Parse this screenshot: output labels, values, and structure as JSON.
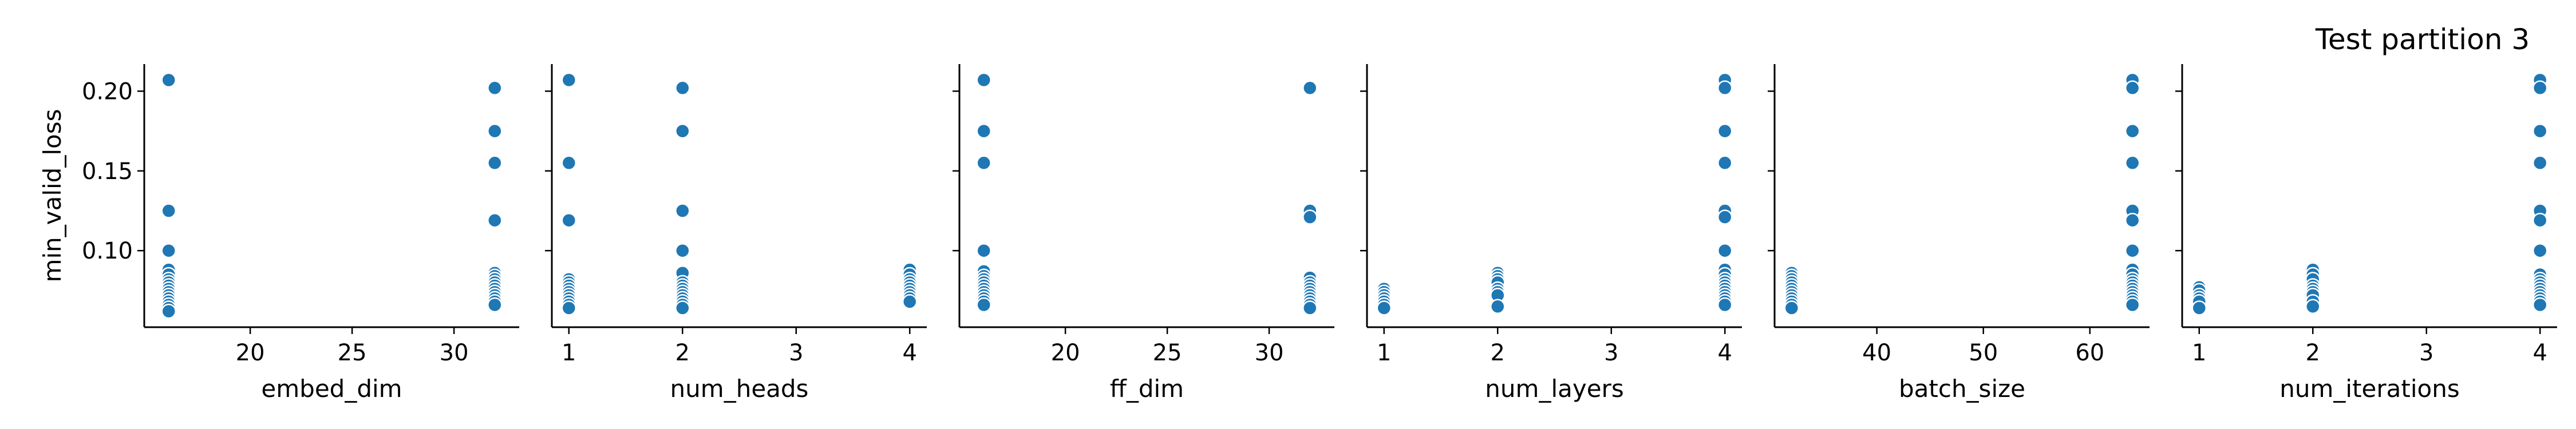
{
  "suptitle": "Test partition 3",
  "colors": {
    "marker": "#1f77b4",
    "marker_edge": "#ffffff",
    "axis": "#000000",
    "background": "#ffffff"
  },
  "chart_data": [
    {
      "type": "scatter",
      "xlabel": "embed_dim",
      "ylabel": "min_valid_loss",
      "xlim": [
        14.8,
        33.2
      ],
      "ylim": [
        0.052,
        0.217
      ],
      "xticks": [
        20,
        25,
        30
      ],
      "yticks": [
        0.1,
        0.15,
        0.2
      ],
      "ytick_labels": [
        "0.10",
        "0.15",
        "0.20"
      ],
      "points": [
        [
          16,
          0.207
        ],
        [
          16,
          0.125
        ],
        [
          16,
          0.1
        ],
        [
          16,
          0.088
        ],
        [
          16,
          0.085
        ],
        [
          16,
          0.082
        ],
        [
          16,
          0.08
        ],
        [
          16,
          0.078
        ],
        [
          16,
          0.076
        ],
        [
          16,
          0.074
        ],
        [
          16,
          0.072
        ],
        [
          16,
          0.07
        ],
        [
          16,
          0.068
        ],
        [
          16,
          0.066
        ],
        [
          16,
          0.064
        ],
        [
          16,
          0.062
        ],
        [
          32,
          0.202
        ],
        [
          32,
          0.175
        ],
        [
          32,
          0.155
        ],
        [
          32,
          0.119
        ],
        [
          32,
          0.086
        ],
        [
          32,
          0.084
        ],
        [
          32,
          0.082
        ],
        [
          32,
          0.08
        ],
        [
          32,
          0.078
        ],
        [
          32,
          0.076
        ],
        [
          32,
          0.074
        ],
        [
          32,
          0.072
        ],
        [
          32,
          0.07
        ],
        [
          32,
          0.068
        ],
        [
          32,
          0.066
        ]
      ]
    },
    {
      "type": "scatter",
      "xlabel": "num_heads",
      "ylabel": "",
      "xlim": [
        0.85,
        4.15
      ],
      "ylim": [
        0.052,
        0.217
      ],
      "xticks": [
        1,
        2,
        3,
        4
      ],
      "yticks": [
        0.1,
        0.15,
        0.2
      ],
      "ytick_labels": [
        "",
        "",
        ""
      ],
      "points": [
        [
          1,
          0.207
        ],
        [
          1,
          0.155
        ],
        [
          1,
          0.119
        ],
        [
          1,
          0.082
        ],
        [
          1,
          0.08
        ],
        [
          1,
          0.078
        ],
        [
          1,
          0.076
        ],
        [
          1,
          0.074
        ],
        [
          1,
          0.072
        ],
        [
          1,
          0.07
        ],
        [
          1,
          0.068
        ],
        [
          1,
          0.066
        ],
        [
          1,
          0.064
        ],
        [
          2,
          0.202
        ],
        [
          2,
          0.175
        ],
        [
          2,
          0.125
        ],
        [
          2,
          0.1
        ],
        [
          2,
          0.086
        ],
        [
          2,
          0.08
        ],
        [
          2,
          0.078
        ],
        [
          2,
          0.076
        ],
        [
          2,
          0.074
        ],
        [
          2,
          0.072
        ],
        [
          2,
          0.07
        ],
        [
          2,
          0.068
        ],
        [
          2,
          0.066
        ],
        [
          2,
          0.064
        ],
        [
          4,
          0.088
        ],
        [
          4,
          0.085
        ],
        [
          4,
          0.082
        ],
        [
          4,
          0.08
        ],
        [
          4,
          0.078
        ],
        [
          4,
          0.076
        ],
        [
          4,
          0.074
        ],
        [
          4,
          0.072
        ],
        [
          4,
          0.07
        ],
        [
          4,
          0.068
        ]
      ]
    },
    {
      "type": "scatter",
      "xlabel": "ff_dim",
      "ylabel": "",
      "xlim": [
        14.8,
        33.2
      ],
      "ylim": [
        0.052,
        0.217
      ],
      "xticks": [
        20,
        25,
        30
      ],
      "yticks": [
        0.1,
        0.15,
        0.2
      ],
      "ytick_labels": [
        "",
        "",
        ""
      ],
      "points": [
        [
          16,
          0.207
        ],
        [
          16,
          0.175
        ],
        [
          16,
          0.155
        ],
        [
          16,
          0.1
        ],
        [
          16,
          0.087
        ],
        [
          16,
          0.084
        ],
        [
          16,
          0.082
        ],
        [
          16,
          0.08
        ],
        [
          16,
          0.078
        ],
        [
          16,
          0.076
        ],
        [
          16,
          0.074
        ],
        [
          16,
          0.072
        ],
        [
          16,
          0.07
        ],
        [
          16,
          0.068
        ],
        [
          16,
          0.066
        ],
        [
          32,
          0.202
        ],
        [
          32,
          0.125
        ],
        [
          32,
          0.121
        ],
        [
          32,
          0.083
        ],
        [
          32,
          0.08
        ],
        [
          32,
          0.078
        ],
        [
          32,
          0.076
        ],
        [
          32,
          0.074
        ],
        [
          32,
          0.072
        ],
        [
          32,
          0.07
        ],
        [
          32,
          0.068
        ],
        [
          32,
          0.066
        ],
        [
          32,
          0.064
        ]
      ]
    },
    {
      "type": "scatter",
      "xlabel": "num_layers",
      "ylabel": "",
      "xlim": [
        0.85,
        4.15
      ],
      "ylim": [
        0.052,
        0.217
      ],
      "xticks": [
        1,
        2,
        3,
        4
      ],
      "yticks": [
        0.1,
        0.15,
        0.2
      ],
      "ytick_labels": [
        "",
        "",
        ""
      ],
      "points": [
        [
          1,
          0.076
        ],
        [
          1,
          0.074
        ],
        [
          1,
          0.072
        ],
        [
          1,
          0.07
        ],
        [
          1,
          0.068
        ],
        [
          1,
          0.066
        ],
        [
          1,
          0.064
        ],
        [
          2,
          0.086
        ],
        [
          2,
          0.084
        ],
        [
          2,
          0.082
        ],
        [
          2,
          0.08
        ],
        [
          2,
          0.076
        ],
        [
          2,
          0.074
        ],
        [
          2,
          0.072
        ],
        [
          2,
          0.065
        ],
        [
          4,
          0.207
        ],
        [
          4,
          0.202
        ],
        [
          4,
          0.175
        ],
        [
          4,
          0.155
        ],
        [
          4,
          0.125
        ],
        [
          4,
          0.121
        ],
        [
          4,
          0.1
        ],
        [
          4,
          0.088
        ],
        [
          4,
          0.085
        ],
        [
          4,
          0.082
        ],
        [
          4,
          0.08
        ],
        [
          4,
          0.078
        ],
        [
          4,
          0.076
        ],
        [
          4,
          0.074
        ],
        [
          4,
          0.072
        ],
        [
          4,
          0.07
        ],
        [
          4,
          0.068
        ],
        [
          4,
          0.066
        ]
      ]
    },
    {
      "type": "scatter",
      "xlabel": "batch_size",
      "ylabel": "",
      "xlim": [
        30.4,
        65.6
      ],
      "ylim": [
        0.052,
        0.217
      ],
      "xticks": [
        40,
        50,
        60
      ],
      "yticks": [
        0.1,
        0.15,
        0.2
      ],
      "ytick_labels": [
        "",
        "",
        ""
      ],
      "points": [
        [
          32,
          0.086
        ],
        [
          32,
          0.084
        ],
        [
          32,
          0.082
        ],
        [
          32,
          0.08
        ],
        [
          32,
          0.078
        ],
        [
          32,
          0.076
        ],
        [
          32,
          0.074
        ],
        [
          32,
          0.072
        ],
        [
          32,
          0.07
        ],
        [
          32,
          0.068
        ],
        [
          32,
          0.066
        ],
        [
          32,
          0.064
        ],
        [
          64,
          0.207
        ],
        [
          64,
          0.202
        ],
        [
          64,
          0.175
        ],
        [
          64,
          0.155
        ],
        [
          64,
          0.125
        ],
        [
          64,
          0.119
        ],
        [
          64,
          0.1
        ],
        [
          64,
          0.088
        ],
        [
          64,
          0.085
        ],
        [
          64,
          0.082
        ],
        [
          64,
          0.08
        ],
        [
          64,
          0.078
        ],
        [
          64,
          0.076
        ],
        [
          64,
          0.074
        ],
        [
          64,
          0.072
        ],
        [
          64,
          0.07
        ],
        [
          64,
          0.068
        ],
        [
          64,
          0.066
        ]
      ]
    },
    {
      "type": "scatter",
      "xlabel": "num_iterations",
      "ylabel": "",
      "xlim": [
        0.85,
        4.15
      ],
      "ylim": [
        0.052,
        0.217
      ],
      "xticks": [
        1,
        2,
        3,
        4
      ],
      "yticks": [
        0.1,
        0.15,
        0.2
      ],
      "ytick_labels": [
        "",
        "",
        ""
      ],
      "points": [
        [
          1,
          0.077
        ],
        [
          1,
          0.075
        ],
        [
          1,
          0.072
        ],
        [
          1,
          0.07
        ],
        [
          1,
          0.068
        ],
        [
          1,
          0.064
        ],
        [
          2,
          0.088
        ],
        [
          2,
          0.085
        ],
        [
          2,
          0.082
        ],
        [
          2,
          0.078
        ],
        [
          2,
          0.076
        ],
        [
          2,
          0.074
        ],
        [
          2,
          0.072
        ],
        [
          2,
          0.068
        ],
        [
          2,
          0.065
        ],
        [
          4,
          0.207
        ],
        [
          4,
          0.202
        ],
        [
          4,
          0.175
        ],
        [
          4,
          0.155
        ],
        [
          4,
          0.125
        ],
        [
          4,
          0.119
        ],
        [
          4,
          0.1
        ],
        [
          4,
          0.085
        ],
        [
          4,
          0.082
        ],
        [
          4,
          0.08
        ],
        [
          4,
          0.078
        ],
        [
          4,
          0.076
        ],
        [
          4,
          0.074
        ],
        [
          4,
          0.072
        ],
        [
          4,
          0.07
        ],
        [
          4,
          0.068
        ],
        [
          4,
          0.066
        ]
      ]
    }
  ]
}
